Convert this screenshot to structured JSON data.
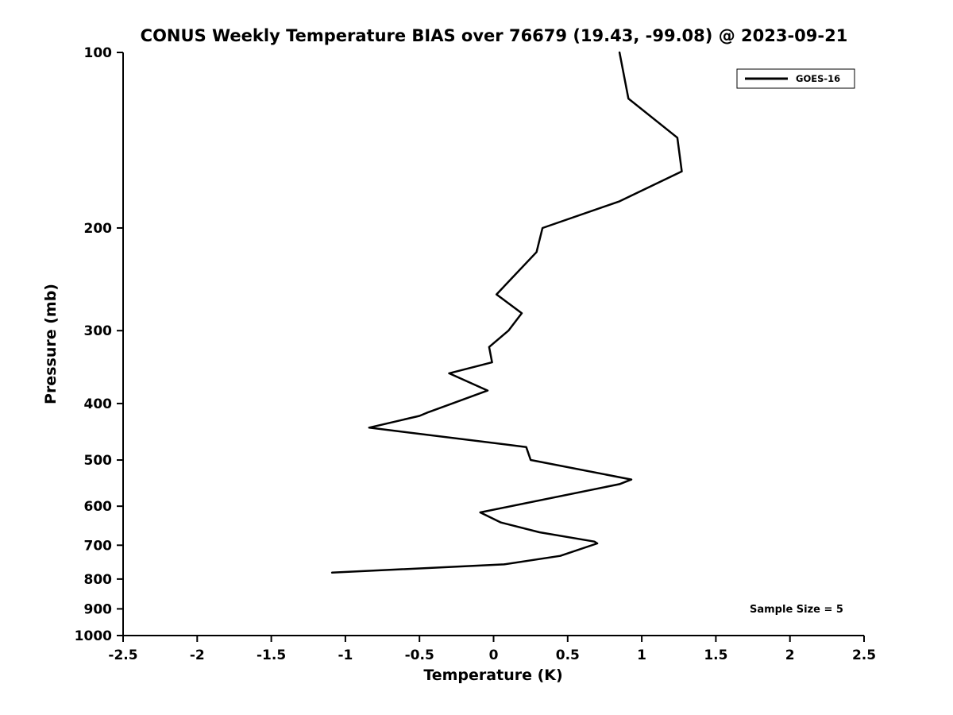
{
  "title": "CONUS Weekly Temperature BIAS over 76679 (19.43, -99.08) @ 2023-09-21",
  "colors": {
    "line": "#000000",
    "axis": "#000000",
    "text": "#000000",
    "background": "#ffffff",
    "legend_border": "#000000"
  },
  "legend": {
    "entries": [
      {
        "label": "GOES-16",
        "color": "#000000"
      }
    ]
  },
  "annotation": {
    "sample_size_label": "Sample Size = 5"
  },
  "chart_data": {
    "type": "line",
    "title": "CONUS Weekly Temperature BIAS over 76679 (19.43, -99.08) @ 2023-09-21",
    "xlabel": "Temperature (K)",
    "ylabel": "Pressure (mb)",
    "xlim": [
      -2.5,
      2.5
    ],
    "ylim": [
      1000,
      100
    ],
    "yscale": "log",
    "grid": false,
    "legend_position": "top-right",
    "x_ticks": [
      -2.5,
      -2,
      -1.5,
      -1,
      -0.5,
      0,
      0.5,
      1,
      1.5,
      2,
      2.5
    ],
    "x_tick_labels": [
      "-2.5",
      "-2",
      "-1.5",
      "-1",
      "-0.5",
      "0",
      "0.5",
      "1",
      "1.5",
      "2",
      "2.5"
    ],
    "y_ticks": [
      100,
      200,
      300,
      400,
      500,
      600,
      700,
      800,
      900,
      1000
    ],
    "y_tick_labels": [
      "100",
      "200",
      "300",
      "400",
      "500",
      "600",
      "700",
      "800",
      "900",
      "1000"
    ],
    "series": [
      {
        "name": "GOES-16",
        "color": "#000000",
        "points_bias_pressure": [
          [
            0.85,
            100
          ],
          [
            0.91,
            120
          ],
          [
            1.24,
            140
          ],
          [
            1.27,
            160
          ],
          [
            0.85,
            180
          ],
          [
            0.33,
            200
          ],
          [
            0.29,
            220
          ],
          [
            0.02,
            260
          ],
          [
            0.19,
            280
          ],
          [
            0.1,
            300
          ],
          [
            -0.03,
            320
          ],
          [
            -0.01,
            340
          ],
          [
            -0.3,
            355
          ],
          [
            -0.04,
            380
          ],
          [
            -0.45,
            415
          ],
          [
            -0.5,
            420
          ],
          [
            -0.84,
            440
          ],
          [
            0.22,
            475
          ],
          [
            0.25,
            500
          ],
          [
            0.93,
            540
          ],
          [
            0.85,
            550
          ],
          [
            -0.09,
            615
          ],
          [
            0.05,
            640
          ],
          [
            0.31,
            665
          ],
          [
            0.68,
            690
          ],
          [
            0.7,
            695
          ],
          [
            0.45,
            730
          ],
          [
            0.07,
            755
          ],
          [
            -1.09,
            780
          ]
        ]
      }
    ]
  }
}
